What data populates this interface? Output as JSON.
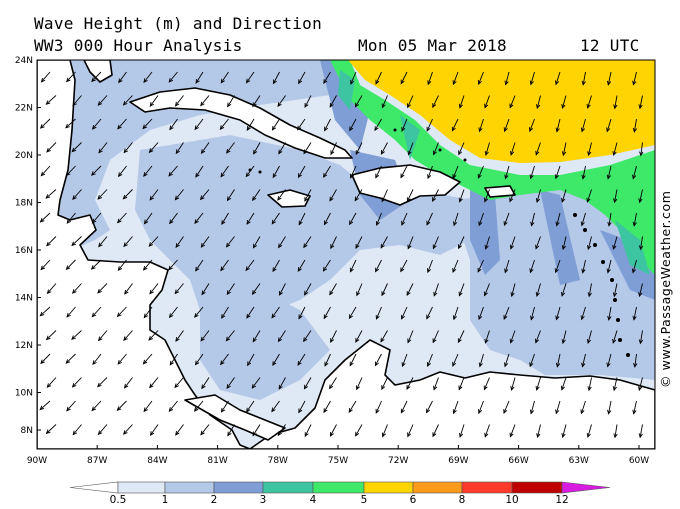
{
  "title_line1": "Wave Height (m) and Direction",
  "title_line2": "WW3 000 Hour Analysis",
  "date": "Mon 05 Mar 2018",
  "time": "12 UTC",
  "credit": "© www.PassageWeather.com",
  "lat_labels": [
    "24N",
    "22N",
    "20N",
    "18N",
    "16N",
    "14N",
    "12N",
    "10N",
    "8N"
  ],
  "lon_labels": [
    "90W",
    "87W",
    "84W",
    "81W",
    "78W",
    "75W",
    "72W",
    "69W",
    "66W",
    "63W",
    "60W"
  ],
  "legend": {
    "labels": [
      "0.5",
      "1",
      "2",
      "3",
      "4",
      "5",
      "6",
      "8",
      "10",
      "12"
    ],
    "colors": [
      "#ffffff",
      "#dfe8f5",
      "#b4c8e8",
      "#7f9ed6",
      "#3cc5a0",
      "#3ee868",
      "#ffd400",
      "#ff9a1a",
      "#ff3a2a",
      "#c00000",
      "#d81be0"
    ]
  },
  "colors": {
    "calm": "#dfe8f5",
    "light": "#b4c8e8",
    "medium": "#7f9ed6",
    "teal": "#3cc5a0",
    "green": "#3ee868",
    "yellow": "#ffd400",
    "land": "#ffffff"
  },
  "wave_direction": "arrows pointing toward south / south-west (northeasterly swell)"
}
